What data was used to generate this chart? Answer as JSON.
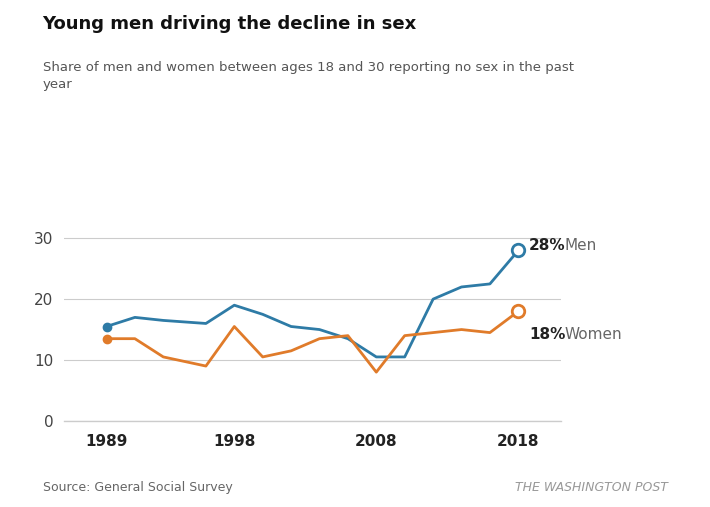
{
  "title": "Young men driving the decline in sex",
  "subtitle": "Share of men and women between ages 18 and 30 reporting no sex in the past\nyear",
  "source_left": "Source: General Social Survey",
  "source_right": "THE WASHINGTON POST",
  "men_x": [
    1989,
    1991,
    1993,
    1996,
    1998,
    2000,
    2002,
    2004,
    2006,
    2008,
    2010,
    2012,
    2014,
    2016,
    2018
  ],
  "men_y": [
    15.5,
    17.0,
    16.5,
    16.0,
    19.0,
    17.5,
    15.5,
    15.0,
    13.5,
    10.5,
    10.5,
    20.0,
    22.0,
    22.5,
    28.0
  ],
  "women_x": [
    1989,
    1991,
    1993,
    1996,
    1998,
    2000,
    2002,
    2004,
    2006,
    2008,
    2010,
    2012,
    2014,
    2016,
    2018
  ],
  "women_y": [
    13.5,
    13.5,
    10.5,
    9.0,
    15.5,
    10.5,
    11.5,
    13.5,
    14.0,
    8.0,
    14.0,
    14.5,
    15.0,
    14.5,
    18.0
  ],
  "men_color": "#2E7BA6",
  "women_color": "#E07B2A",
  "men_label": "28%",
  "women_label": "18%",
  "men_series_label": "Men",
  "women_series_label": "Women",
  "ylim": [
    0,
    35
  ],
  "yticks": [
    0,
    10,
    20,
    30
  ],
  "xticks": [
    1989,
    1998,
    2008,
    2018
  ],
  "bg_color": "#ffffff",
  "grid_color": "#cccccc",
  "axis_line_color": "#888888"
}
